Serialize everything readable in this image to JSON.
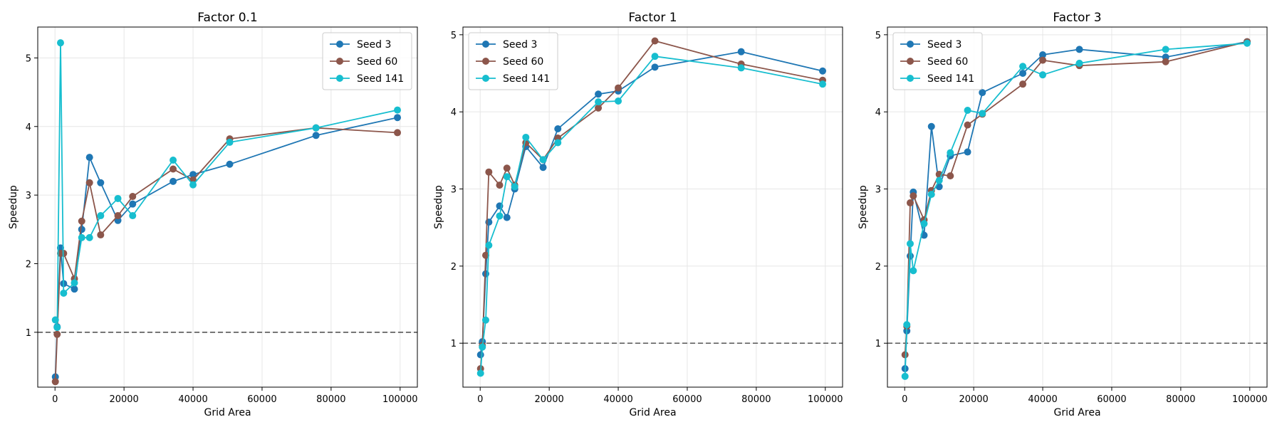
{
  "chart_data": [
    {
      "type": "line",
      "title": "Factor 0.1",
      "xlabel": "Grid Area",
      "ylabel": "Speedup",
      "xlim": [
        -5000,
        105000
      ],
      "ylim": [
        0.2,
        5.45
      ],
      "xticks": [
        0,
        20000,
        40000,
        60000,
        80000,
        100000
      ],
      "xtick_labels": [
        "0",
        "20000",
        "40000",
        "60000",
        "80000",
        "100000"
      ],
      "yticks": [
        1,
        2,
        3,
        4,
        5
      ],
      "ytick_labels": [
        "1",
        "2",
        "3",
        "4",
        "5"
      ],
      "grid": true,
      "legend": "top-right",
      "reference_line": 1,
      "series": [
        {
          "name": "Seed 3",
          "color": "#1f77b4",
          "x": [
            100,
            625,
            1600,
            2500,
            5625,
            7744,
            10000,
            13225,
            18225,
            22500,
            34225,
            40000,
            50625,
            75625,
            99225
          ],
          "y": [
            0.35,
            1.08,
            2.23,
            1.71,
            1.63,
            2.5,
            3.55,
            3.18,
            2.63,
            2.87,
            3.2,
            3.3,
            3.45,
            3.87,
            4.13
          ]
        },
        {
          "name": "Seed 60",
          "color": "#8c564b",
          "x": [
            100,
            625,
            1600,
            2500,
            5625,
            7744,
            10000,
            13225,
            18225,
            22500,
            34225,
            40000,
            50625,
            75625,
            99225
          ],
          "y": [
            0.28,
            0.97,
            2.15,
            2.15,
            1.78,
            2.62,
            3.18,
            2.42,
            2.7,
            2.98,
            3.38,
            3.22,
            3.82,
            3.98,
            3.91
          ]
        },
        {
          "name": "Seed 141",
          "color": "#17becf",
          "x": [
            100,
            625,
            1600,
            2500,
            5625,
            7744,
            10000,
            13225,
            18225,
            22500,
            34225,
            40000,
            50625,
            75625,
            99225
          ],
          "y": [
            1.18,
            1.07,
            5.22,
            1.57,
            1.72,
            2.38,
            2.38,
            2.7,
            2.95,
            2.7,
            3.51,
            3.15,
            3.77,
            3.98,
            4.24
          ]
        }
      ]
    },
    {
      "type": "line",
      "title": "Factor 1",
      "xlabel": "Grid Area",
      "ylabel": "Speedup",
      "xlim": [
        -5000,
        105000
      ],
      "ylim": [
        0.43,
        5.1
      ],
      "xticks": [
        0,
        20000,
        40000,
        60000,
        80000,
        100000
      ],
      "xtick_labels": [
        "0",
        "20000",
        "40000",
        "60000",
        "80000",
        "100000"
      ],
      "yticks": [
        1,
        2,
        3,
        4,
        5
      ],
      "ytick_labels": [
        "1",
        "2",
        "3",
        "4",
        "5"
      ],
      "grid": true,
      "legend": "top-left",
      "reference_line": 1,
      "series": [
        {
          "name": "Seed 3",
          "color": "#1f77b4",
          "x": [
            100,
            625,
            1600,
            2500,
            5625,
            7744,
            10000,
            13225,
            18225,
            22500,
            34225,
            40000,
            50625,
            75625,
            99225
          ],
          "y": [
            0.85,
            1.02,
            1.9,
            2.57,
            2.78,
            2.63,
            3.0,
            3.55,
            3.28,
            3.78,
            4.23,
            4.27,
            4.58,
            4.78,
            4.53
          ]
        },
        {
          "name": "Seed 60",
          "color": "#8c564b",
          "x": [
            100,
            625,
            1600,
            2500,
            5625,
            7744,
            10000,
            13225,
            18225,
            22500,
            34225,
            40000,
            50625,
            75625,
            99225
          ],
          "y": [
            0.67,
            0.97,
            2.14,
            3.22,
            3.05,
            3.27,
            3.05,
            3.6,
            3.38,
            3.66,
            4.05,
            4.31,
            4.92,
            4.62,
            4.41
          ]
        },
        {
          "name": "Seed 141",
          "color": "#17becf",
          "x": [
            100,
            625,
            1600,
            2500,
            5625,
            7744,
            10000,
            13225,
            18225,
            22500,
            34225,
            40000,
            50625,
            75625,
            99225
          ],
          "y": [
            0.61,
            0.95,
            1.3,
            2.27,
            2.65,
            3.16,
            3.03,
            3.67,
            3.38,
            3.6,
            4.13,
            4.14,
            4.72,
            4.57,
            4.36
          ]
        }
      ]
    },
    {
      "type": "line",
      "title": "Factor 3",
      "xlabel": "Grid Area",
      "ylabel": "Speedup",
      "xlim": [
        -5000,
        105000
      ],
      "ylim": [
        0.43,
        5.1
      ],
      "xticks": [
        0,
        20000,
        40000,
        60000,
        80000,
        100000
      ],
      "xtick_labels": [
        "0",
        "20000",
        "40000",
        "60000",
        "80000",
        "100000"
      ],
      "yticks": [
        1,
        2,
        3,
        4,
        5
      ],
      "ytick_labels": [
        "1",
        "2",
        "3",
        "4",
        "5"
      ],
      "grid": true,
      "legend": "top-left",
      "reference_line": 1,
      "series": [
        {
          "name": "Seed 3",
          "color": "#1f77b4",
          "x": [
            100,
            625,
            1600,
            2500,
            5625,
            7744,
            10000,
            13225,
            18225,
            22500,
            34225,
            40000,
            50625,
            75625,
            99225
          ],
          "y": [
            0.67,
            1.16,
            2.13,
            2.96,
            2.4,
            3.81,
            3.03,
            3.43,
            3.48,
            4.25,
            4.5,
            4.74,
            4.81,
            4.71,
            4.91
          ]
        },
        {
          "name": "Seed 60",
          "color": "#8c564b",
          "x": [
            100,
            625,
            1600,
            2500,
            5625,
            7744,
            10000,
            13225,
            18225,
            22500,
            34225,
            40000,
            50625,
            75625,
            99225
          ],
          "y": [
            0.85,
            1.22,
            2.82,
            2.91,
            2.6,
            2.98,
            3.19,
            3.17,
            3.83,
            3.97,
            4.36,
            4.67,
            4.6,
            4.65,
            4.91
          ]
        },
        {
          "name": "Seed 141",
          "color": "#17becf",
          "x": [
            100,
            625,
            1600,
            2500,
            5625,
            7744,
            10000,
            13225,
            18225,
            22500,
            34225,
            40000,
            50625,
            75625,
            99225
          ],
          "y": [
            0.57,
            1.24,
            2.29,
            1.94,
            2.55,
            2.93,
            3.11,
            3.47,
            4.02,
            3.98,
            4.59,
            4.48,
            4.63,
            4.81,
            4.89
          ]
        }
      ]
    }
  ]
}
